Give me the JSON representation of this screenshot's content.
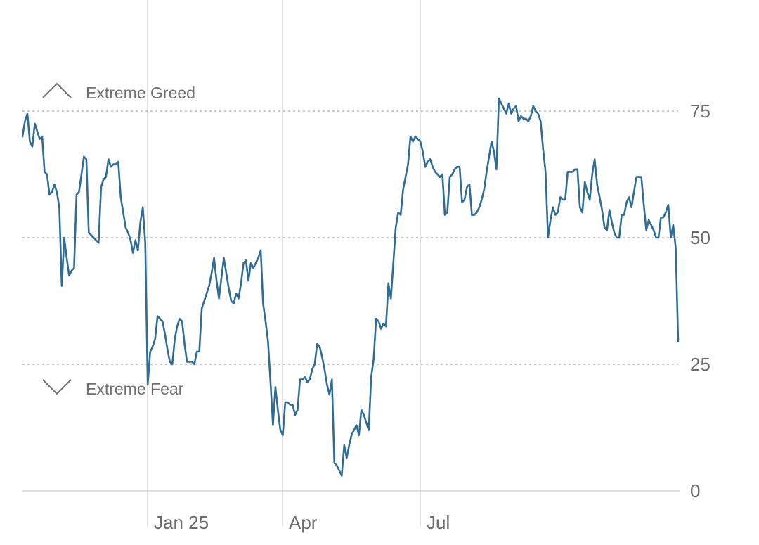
{
  "chart_data": {
    "type": "line",
    "ylim": [
      0,
      100
    ],
    "y_ticks": [
      {
        "value": 0,
        "label": "0"
      },
      {
        "value": 25,
        "label": "25"
      },
      {
        "value": 50,
        "label": "50"
      },
      {
        "value": 75,
        "label": "75"
      }
    ],
    "x_ticks": [
      {
        "index": 51,
        "label": "Jan 25"
      },
      {
        "index": 106,
        "label": "Apr"
      },
      {
        "index": 162,
        "label": "Jul"
      }
    ],
    "zones": {
      "greed_label": "Extreme Greed",
      "fear_label": "Extreme Fear"
    },
    "grid": {
      "horizontal": true,
      "vertical": true
    },
    "line_color": "#2f6c96",
    "series": [
      {
        "values": [
          70,
          73,
          74.5,
          69,
          68,
          72.5,
          71,
          69.5,
          70,
          63,
          62.5,
          58.5,
          59,
          60.5,
          59,
          56,
          40.5,
          50,
          46,
          42.5,
          43.5,
          44,
          58.5,
          59,
          62.5,
          66,
          65.5,
          51,
          50.5,
          50,
          49.5,
          49,
          60,
          61.5,
          62,
          65.5,
          64,
          64.5,
          64.5,
          65,
          58,
          55,
          52,
          51,
          49.5,
          47,
          49.5,
          47.5,
          53,
          56,
          49,
          21,
          27.5,
          28.5,
          30,
          34.5,
          34,
          33.5,
          31,
          28,
          25.5,
          25,
          30,
          32.5,
          34,
          33.5,
          29,
          25.5,
          25.5,
          25.5,
          25,
          27.5,
          27.5,
          36,
          37.5,
          39,
          40.5,
          43,
          46,
          41.5,
          38,
          42,
          46,
          43,
          40,
          37.5,
          37,
          39,
          38,
          41,
          45,
          45.5,
          41.5,
          45,
          44,
          45,
          46,
          47.5,
          37,
          33.5,
          29.5,
          21.5,
          13,
          20.5,
          16,
          12,
          11,
          17.5,
          17.5,
          17,
          17,
          15,
          16,
          22,
          22,
          22.5,
          21.5,
          22,
          24,
          25,
          29,
          28.5,
          26.5,
          24,
          21,
          19,
          22,
          5.5,
          5,
          4,
          3,
          9,
          6.5,
          9,
          11,
          12,
          13,
          11,
          16,
          15,
          13.5,
          12,
          22.5,
          26,
          34,
          33.5,
          32,
          33,
          32.5,
          41,
          38,
          45,
          52,
          55,
          54.5,
          59.5,
          62,
          64.5,
          70,
          69,
          70,
          69.5,
          69,
          67,
          64,
          65,
          65.5,
          64,
          63,
          62.5,
          62,
          62.5,
          54.5,
          55,
          62,
          62.5,
          63.5,
          64,
          64,
          57,
          57.5,
          60,
          60.5,
          54.5,
          54.5,
          55,
          56,
          57.5,
          59.5,
          63,
          66,
          69,
          67,
          63.5,
          77.5,
          76.5,
          75.5,
          74.5,
          76.5,
          74.5,
          75.5,
          76,
          73,
          74,
          73.5,
          73.5,
          73,
          74,
          76,
          75,
          74.5,
          73,
          67.5,
          63,
          50,
          53.5,
          56,
          54.5,
          55,
          58,
          57.5,
          57.5,
          63,
          63,
          63,
          63.5,
          63.5,
          56,
          55,
          61,
          59,
          57.5,
          62.5,
          65.5,
          60.5,
          58,
          55.5,
          52,
          51.5,
          55.5,
          53,
          51,
          50,
          50,
          54.5,
          54.5,
          57,
          58,
          56,
          59,
          62,
          62,
          62,
          56.5,
          51.5,
          53.5,
          52.5,
          51.5,
          50,
          50,
          54,
          54,
          55,
          56.5,
          50,
          52.5,
          48,
          29.5
        ]
      }
    ]
  }
}
